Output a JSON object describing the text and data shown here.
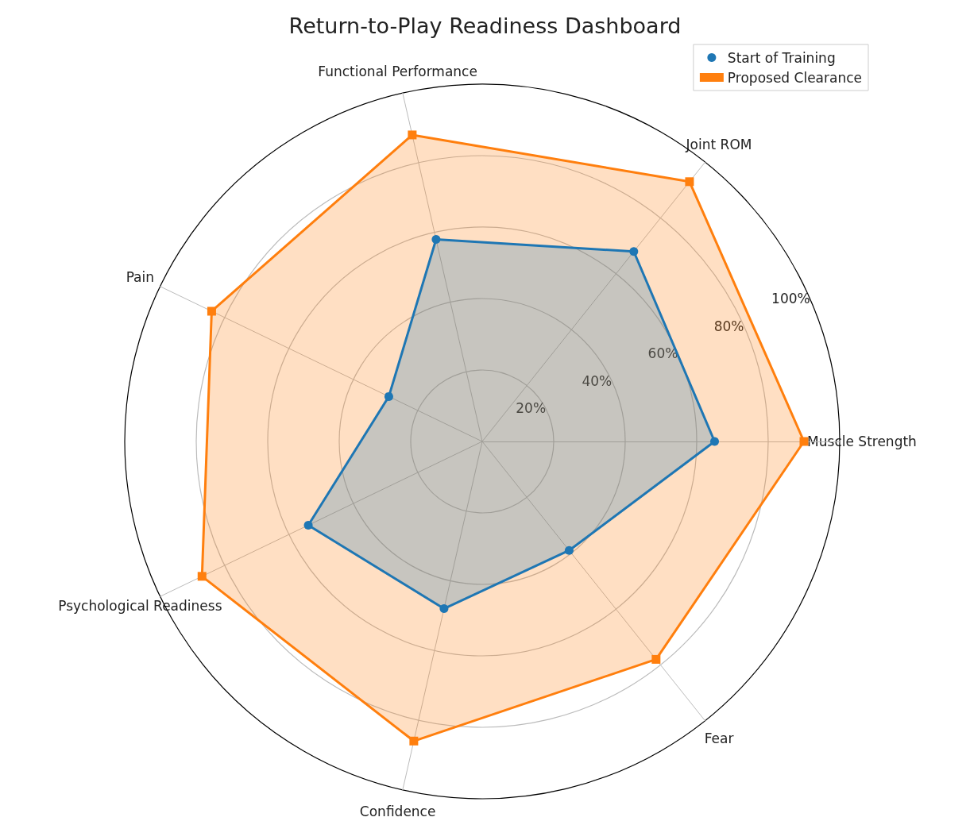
{
  "chart_data": {
    "type": "radar",
    "title": "Return-to-Play Readiness Dashboard",
    "categories": [
      "Joint ROM",
      "Muscle Strength",
      "Fear",
      "Confidence",
      "Psychological Readiness",
      "Pain",
      "Functional Performance"
    ],
    "series": [
      {
        "name": "Start of Training",
        "color": "#1f77b4",
        "marker": "circle",
        "values": [
          68,
          65,
          39,
          48,
          54,
          29,
          58
        ]
      },
      {
        "name": "Proposed Clearance",
        "color": "#ff7f0e",
        "marker": "square",
        "values": [
          93,
          90,
          78,
          86,
          87,
          84,
          88
        ]
      }
    ],
    "ylim": [
      0,
      100
    ],
    "yticks": [
      {
        "value": 20,
        "label": "20%"
      },
      {
        "value": 40,
        "label": "40%"
      },
      {
        "value": 60,
        "label": "60%"
      },
      {
        "value": 80,
        "label": "80%"
      },
      {
        "value": 100,
        "label": "100%"
      }
    ],
    "grid": true,
    "legend": "top right"
  }
}
